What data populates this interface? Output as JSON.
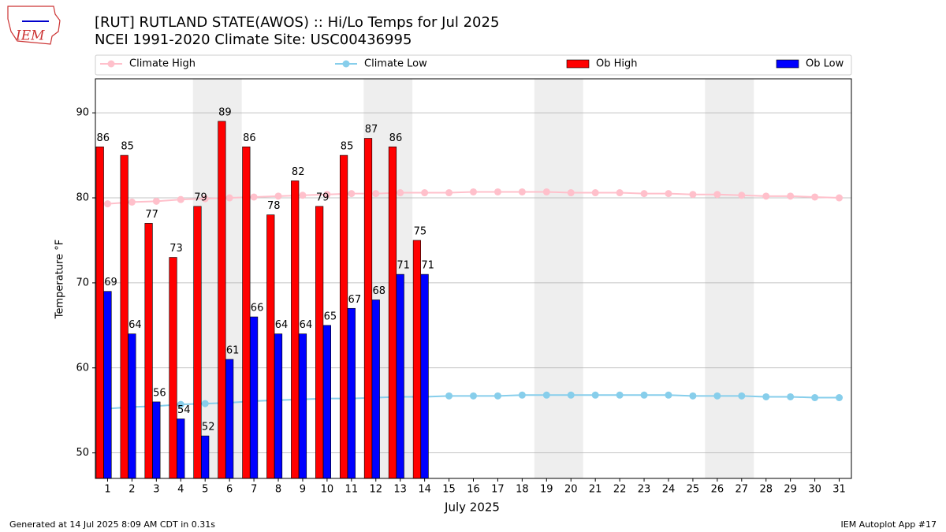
{
  "logo": "IEM",
  "chart_data": {
    "type": "bar",
    "title": "[RUT] RUTLAND STATE(AWOS) :: Hi/Lo Temps for Jul 2025",
    "subtitle": "NCEI 1991-2020 Climate Site: USC00436995",
    "x_label": "July 2025",
    "y_label": "Temperature °F",
    "footer_left": "Generated at 14 Jul 2025 8:09 AM CDT in 0.31s",
    "footer_right": "IEM Autoplot App #17",
    "x": [
      1,
      2,
      3,
      4,
      5,
      6,
      7,
      8,
      9,
      10,
      11,
      12,
      13,
      14,
      15,
      16,
      17,
      18,
      19,
      20,
      21,
      22,
      23,
      24,
      25,
      26,
      27,
      28,
      29,
      30,
      31
    ],
    "xlim": [
      0.5,
      31.5
    ],
    "ylim": [
      47,
      94
    ],
    "yticks": [
      50,
      60,
      70,
      80,
      90
    ],
    "grid": true,
    "shaded_ranges": [
      [
        4.5,
        6.5
      ],
      [
        11.5,
        13.5
      ],
      [
        18.5,
        20.5
      ],
      [
        25.5,
        27.5
      ]
    ],
    "series": [
      {
        "name": "Climate High",
        "type": "line",
        "color": "#ffc0cb",
        "values": [
          79.3,
          79.5,
          79.6,
          79.8,
          79.9,
          80.0,
          80.1,
          80.2,
          80.3,
          80.4,
          80.5,
          80.5,
          80.6,
          80.6,
          80.6,
          80.7,
          80.7,
          80.7,
          80.7,
          80.6,
          80.6,
          80.6,
          80.5,
          80.5,
          80.4,
          80.4,
          80.3,
          80.2,
          80.2,
          80.1,
          80.0
        ]
      },
      {
        "name": "Climate Low",
        "type": "line",
        "color": "#87ceeb",
        "values": [
          55.2,
          55.4,
          55.5,
          55.7,
          55.8,
          55.9,
          56.1,
          56.2,
          56.3,
          56.4,
          56.4,
          56.5,
          56.6,
          56.6,
          56.7,
          56.7,
          56.7,
          56.8,
          56.8,
          56.8,
          56.8,
          56.8,
          56.8,
          56.8,
          56.7,
          56.7,
          56.7,
          56.6,
          56.6,
          56.5,
          56.5
        ]
      },
      {
        "name": "Ob High",
        "type": "bar",
        "color": "#ff0000",
        "values": [
          86,
          85,
          77,
          73,
          79,
          89,
          86,
          78,
          82,
          79,
          85,
          87,
          86,
          75,
          null,
          null,
          null,
          null,
          null,
          null,
          null,
          null,
          null,
          null,
          null,
          null,
          null,
          null,
          null,
          null,
          null
        ]
      },
      {
        "name": "Ob Low",
        "type": "bar",
        "color": "#0000ff",
        "values": [
          69,
          64,
          56,
          54,
          52,
          61,
          66,
          64,
          64,
          65,
          67,
          68,
          71,
          71,
          null,
          null,
          null,
          null,
          null,
          null,
          null,
          null,
          null,
          null,
          null,
          null,
          null,
          null,
          null,
          null,
          null
        ]
      }
    ]
  }
}
